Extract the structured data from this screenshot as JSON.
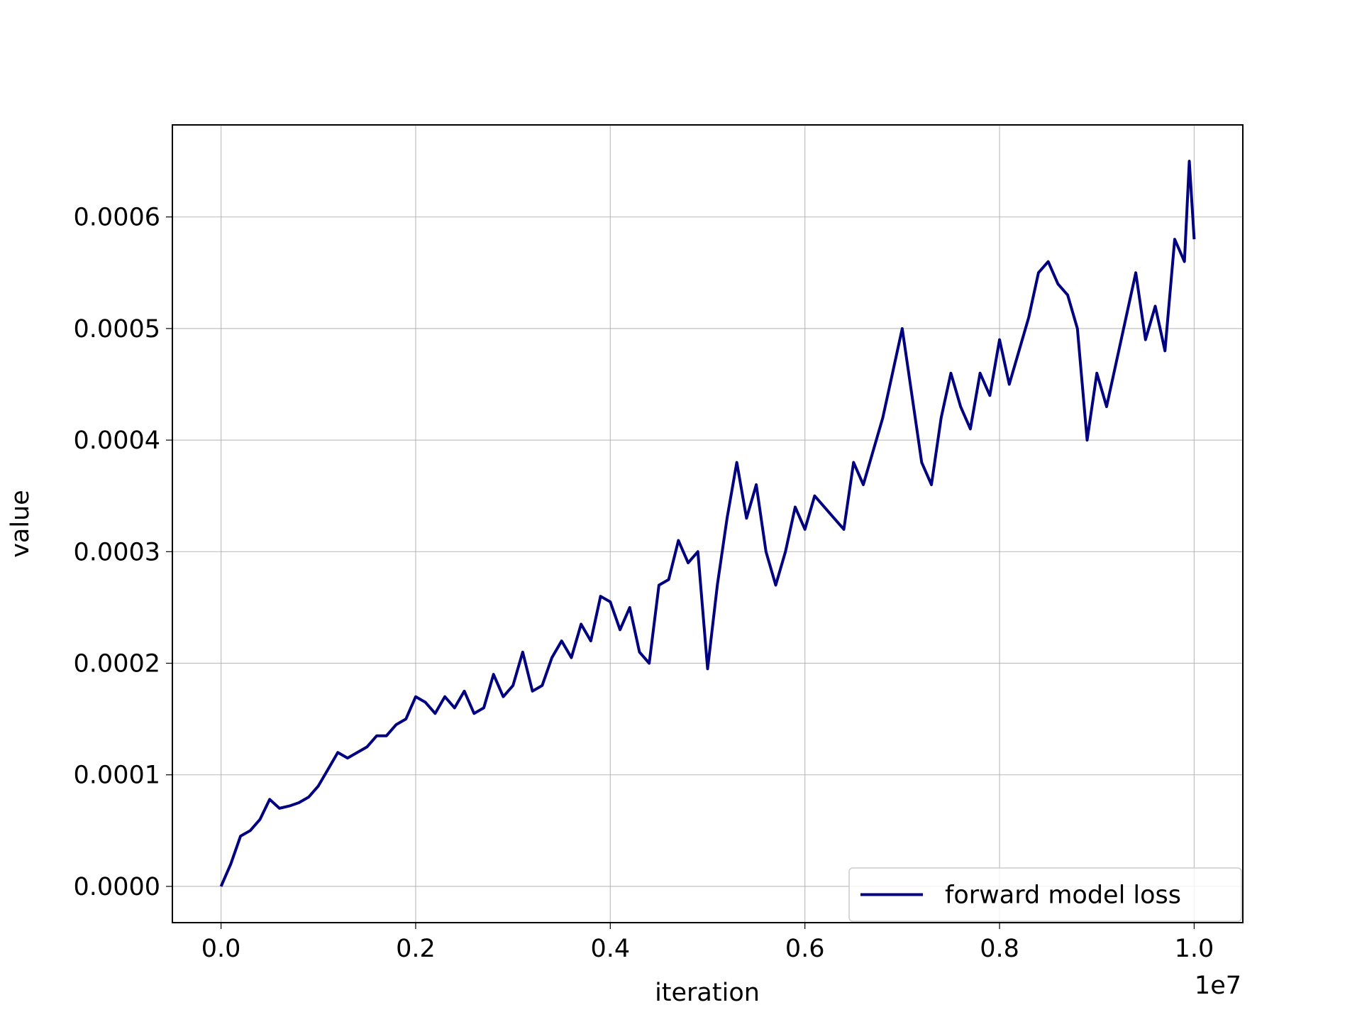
{
  "chart_data": {
    "type": "line",
    "xlabel": "iteration",
    "ylabel": "value",
    "x_offset_label": "1e7",
    "xlim": [
      -0.05,
      1.05
    ],
    "ylim": [
      -3.25e-05,
      0.0006825
    ],
    "xticks": [
      {
        "value": 0,
        "label": "0.0"
      },
      0.2,
      0.4,
      0.6,
      0.8,
      {
        "value": 1,
        "label": "1.0"
      }
    ],
    "yticks": [
      {
        "value": 0,
        "label": "0.0000"
      },
      0.0001,
      0.0002,
      0.0003,
      0.0004,
      0.0005,
      0.0006
    ],
    "grid": true,
    "legend": "lower right",
    "x": [
      0,
      0.01,
      0.02,
      0.03,
      0.04,
      0.05,
      0.06,
      0.07,
      0.08,
      0.09,
      0.1,
      0.11,
      0.12,
      0.13,
      0.14,
      0.15,
      0.16,
      0.17,
      0.18,
      0.19,
      0.2,
      0.21,
      0.22,
      0.23,
      0.24,
      0.25,
      0.26,
      0.27,
      0.28,
      0.29,
      0.3,
      0.31,
      0.32,
      0.33,
      0.34,
      0.35,
      0.36,
      0.37,
      0.38,
      0.39,
      0.4,
      0.41,
      0.42,
      0.43,
      0.44,
      0.45,
      0.46,
      0.47,
      0.48,
      0.49,
      0.5,
      0.51,
      0.52,
      0.53,
      0.54,
      0.55,
      0.56,
      0.57,
      0.58,
      0.59,
      0.6,
      0.61,
      0.62,
      0.63,
      0.64,
      0.65,
      0.66,
      0.67,
      0.68,
      0.69,
      0.7,
      0.71,
      0.72,
      0.73,
      0.74,
      0.75,
      0.76,
      0.77,
      0.78,
      0.79,
      0.8,
      0.81,
      0.82,
      0.83,
      0.84,
      0.85,
      0.86,
      0.87,
      0.88,
      0.89,
      0.9,
      0.91,
      0.92,
      0.93,
      0.94,
      0.95,
      0.96,
      0.97,
      0.98,
      0.99,
      0.995,
      1
    ],
    "series": [
      {
        "name": "forward model loss",
        "color": "#000080",
        "values": [
          0,
          2e-05,
          4.5e-05,
          5e-05,
          6e-05,
          7.8e-05,
          7e-05,
          7.2e-05,
          7.5e-05,
          8e-05,
          9e-05,
          0.000105,
          0.00012,
          0.000115,
          0.00012,
          0.000125,
          0.000135,
          0.000135,
          0.000145,
          0.00015,
          0.00017,
          0.000165,
          0.000155,
          0.00017,
          0.00016,
          0.000175,
          0.000155,
          0.00016,
          0.00019,
          0.00017,
          0.00018,
          0.00021,
          0.000175,
          0.00018,
          0.000205,
          0.00022,
          0.000205,
          0.000235,
          0.00022,
          0.00026,
          0.000255,
          0.00023,
          0.00025,
          0.00021,
          0.0002,
          0.00027,
          0.000275,
          0.00031,
          0.00029,
          0.0003,
          0.000195,
          0.00027,
          0.00033,
          0.00038,
          0.00033,
          0.00036,
          0.0003,
          0.00027,
          0.0003,
          0.00034,
          0.00032,
          0.00035,
          0.00034,
          0.00033,
          0.00032,
          0.00038,
          0.00036,
          0.00039,
          0.00042,
          0.00046,
          0.0005,
          0.00044,
          0.00038,
          0.00036,
          0.00042,
          0.00046,
          0.00043,
          0.00041,
          0.00046,
          0.00044,
          0.00049,
          0.00045,
          0.00048,
          0.00051,
          0.00055,
          0.00056,
          0.00054,
          0.00053,
          0.0005,
          0.0004,
          0.00046,
          0.00043,
          0.00047,
          0.00051,
          0.00055,
          0.00049,
          0.00052,
          0.00048,
          0.00058,
          0.00056,
          0.00065,
          0.00058
        ]
      }
    ]
  }
}
